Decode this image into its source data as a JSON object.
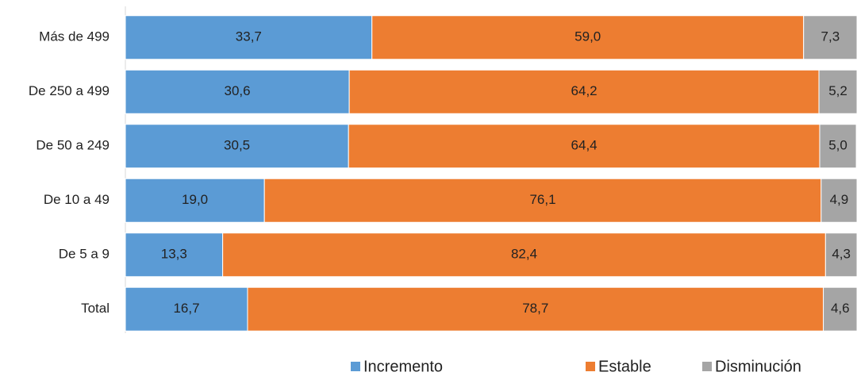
{
  "chart_data": {
    "type": "stacked-bar-horizontal",
    "categories": [
      "Más de 499",
      "De 250 a 499",
      "De 50 a 249",
      "De 10 a 49",
      "De 5 a 9",
      "Total"
    ],
    "xlim": [
      0,
      100
    ],
    "legend": "bottom",
    "series": [
      {
        "name": "Incremento",
        "color": "#5b9bd5",
        "values": [
          33.7,
          30.6,
          30.5,
          19.0,
          13.3,
          16.7
        ],
        "value_labels": [
          "33,7",
          "30,6",
          "30,5",
          "19,0",
          "13,3",
          "16,7"
        ]
      },
      {
        "name": "Estable",
        "color": "#ed7d31",
        "values": [
          59.0,
          64.2,
          64.4,
          76.1,
          82.4,
          78.7
        ],
        "value_labels": [
          "59,0",
          "64,2",
          "64,4",
          "76,1",
          "82,4",
          "78,7"
        ]
      },
      {
        "name": "Disminución",
        "color": "#a5a5a5",
        "values": [
          7.3,
          5.2,
          5.0,
          4.9,
          4.3,
          4.6
        ],
        "value_labels": [
          "7,3",
          "5,2",
          "5,0",
          "4,9",
          "4,3",
          "4,6"
        ]
      }
    ]
  }
}
